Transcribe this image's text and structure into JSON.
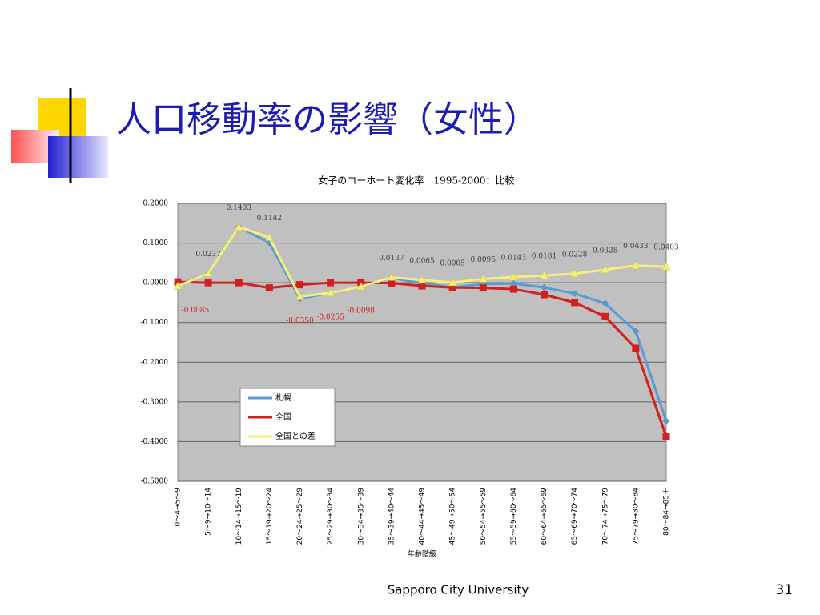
{
  "slide": {
    "title": "人口移動率の影響（女性）",
    "footer": "Sapporo City University",
    "page_number": "31"
  },
  "chart_data": {
    "type": "line",
    "title": "女子のコーホート変化率　1995-2000：比較",
    "x_label": "年齢階級",
    "categories": [
      "0～4→5～9",
      "5～9→10～14",
      "10～14→15～19",
      "15～19→20～24",
      "20～24→25～29",
      "25～29→30～34",
      "30～34→35～39",
      "35～39→40～44",
      "40～44→45～49",
      "45～49→50～54",
      "50～54→55～59",
      "55～59→60～64",
      "60～64→65～69",
      "65～69→70～74",
      "70～74→75～79",
      "75～79→80～84",
      "80～84→85＋"
    ],
    "ylim": [
      -0.5,
      0.2
    ],
    "yticks": [
      {
        "value": 0.2,
        "label": "0.2000"
      },
      {
        "value": 0.1,
        "label": "0.1000"
      },
      {
        "value": 0,
        "label": "0.0000"
      },
      {
        "value": -0.1,
        "label": "-0.1000"
      },
      {
        "value": -0.2,
        "label": "-0.2000"
      },
      {
        "value": -0.3,
        "label": "-0.3000"
      },
      {
        "value": -0.4,
        "label": "-0.4000"
      },
      {
        "value": -0.5,
        "label": "-0.5000"
      }
    ],
    "grid": true,
    "series": [
      {
        "name": "札幌",
        "color": "#5b9bd5",
        "marker": "diamond",
        "values": [
          -0.0065,
          0.0237,
          0.1403,
          0.101,
          -0.04,
          -0.0255,
          -0.0098,
          0.0127,
          -0.0015,
          -0.0115,
          -0.0035,
          -0.002,
          -0.012,
          -0.027,
          -0.052,
          -0.122,
          -0.348
        ]
      },
      {
        "name": "全国",
        "color": "#d02020",
        "marker": "square",
        "values": [
          0.002,
          0,
          0,
          -0.013,
          -0.005,
          0,
          0,
          -0.001,
          -0.008,
          -0.012,
          -0.013,
          -0.016,
          -0.03,
          -0.05,
          -0.085,
          -0.165,
          -0.388
        ]
      },
      {
        "name": "全国との差",
        "color": "#f5f07a",
        "marker": "triangle",
        "values": [
          -0.0085,
          0.0237,
          0.1403,
          0.1142,
          -0.035,
          -0.0255,
          -0.0098,
          0.0137,
          0.0065,
          0.0005,
          0.0095,
          0.0143,
          0.0181,
          0.0228,
          0.0328,
          0.0433,
          0.0403
        ],
        "value_labels": [
          "-0.0085",
          "0.0237",
          "0.1403",
          "0.1142",
          "-0.0350",
          "-0.0255",
          "-0.0098",
          "0.0137",
          "0.0065",
          "0.0005",
          "0.0095",
          "0.0143",
          "0.0181",
          "0.0228",
          "0.0328",
          "0.0433",
          "0.0403"
        ]
      }
    ]
  }
}
